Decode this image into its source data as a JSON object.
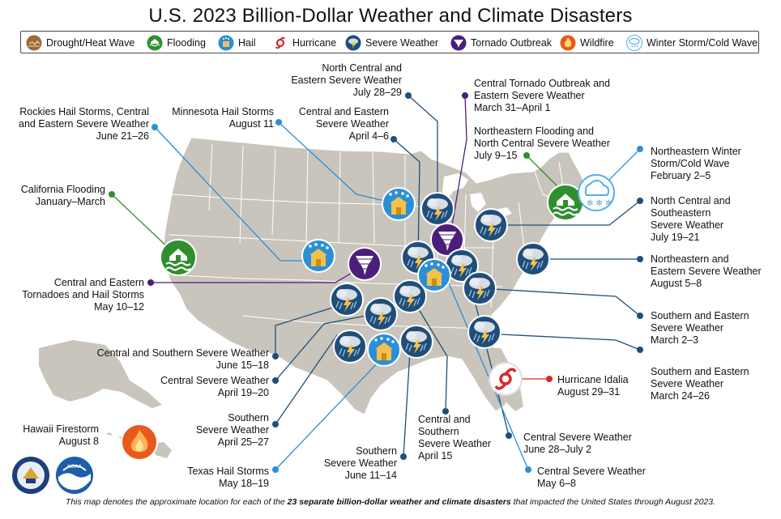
{
  "title": "U.S. 2023 Billion-Dollar Weather and Climate Disasters",
  "legend": [
    {
      "label": "Drought/Heat Wave",
      "icon": "drought-icon",
      "color": "#8a5a2b"
    },
    {
      "label": "Flooding",
      "icon": "flooding-icon",
      "color": "#2f8f2f"
    },
    {
      "label": "Hail",
      "icon": "hail-icon",
      "color": "#2a8fd6"
    },
    {
      "label": "Hurricane",
      "icon": "hurricane-icon",
      "color": "#d62a2a"
    },
    {
      "label": "Severe Weather",
      "icon": "severe-weather-icon",
      "color": "#1f4e79"
    },
    {
      "label": "Tornado Outbreak",
      "icon": "tornado-icon",
      "color": "#4b1e7a"
    },
    {
      "label": "Wildfire",
      "icon": "wildfire-icon",
      "color": "#e85a1c"
    },
    {
      "label": "Winter Storm/Cold Wave",
      "icon": "winter-storm-icon",
      "color": "#5aaee6"
    }
  ],
  "events": [
    {
      "id": "e1",
      "lines": [
        "North Central and",
        "Eastern Severe Weather",
        "July 28–29"
      ],
      "type": "severe-weather"
    },
    {
      "id": "e2",
      "lines": [
        "Central Tornado Outbreak and",
        "Eastern Severe Weather",
        "March 31–April 1"
      ],
      "type": "tornado"
    },
    {
      "id": "e3",
      "lines": [
        "Rockies Hail Storms, Central",
        "and Eastern Severe Weather",
        "June 21–26"
      ],
      "type": "hail"
    },
    {
      "id": "e4",
      "lines": [
        "Minnesota Hail Storms",
        "August 11"
      ],
      "type": "hail"
    },
    {
      "id": "e5",
      "lines": [
        "Central and Eastern",
        "Severe Weather",
        "April 4–6"
      ],
      "type": "severe-weather"
    },
    {
      "id": "e6",
      "lines": [
        "Northeastern Flooding and",
        "North Central Severe Weather",
        "July 9–15"
      ],
      "type": "flooding"
    },
    {
      "id": "e7",
      "lines": [
        "Northeastern Winter",
        "Storm/Cold Wave",
        "February 2–5"
      ],
      "type": "winter-storm"
    },
    {
      "id": "e8",
      "lines": [
        "California Flooding",
        "January–March"
      ],
      "type": "flooding"
    },
    {
      "id": "e9",
      "lines": [
        "North Central and",
        "Southeastern",
        "Severe Weather",
        "July 19–21"
      ],
      "type": "severe-weather"
    },
    {
      "id": "e10",
      "lines": [
        "Northeastern and",
        "Eastern Severe Weather",
        "August 5–8"
      ],
      "type": "severe-weather"
    },
    {
      "id": "e11",
      "lines": [
        "Central and Eastern",
        "Tornadoes and Hail Storms",
        "May 10–12"
      ],
      "type": "tornado"
    },
    {
      "id": "e12",
      "lines": [
        "Southern and Eastern",
        "Severe Weather",
        "March 2–3"
      ],
      "type": "severe-weather"
    },
    {
      "id": "e13",
      "lines": [
        "Central and Southern Severe Weather",
        "June 15–18"
      ],
      "type": "severe-weather"
    },
    {
      "id": "e14",
      "lines": [
        "Southern and Eastern",
        "Severe Weather",
        "March 24–26"
      ],
      "type": "severe-weather"
    },
    {
      "id": "e15",
      "lines": [
        "Central Severe Weather",
        "April 19–20"
      ],
      "type": "severe-weather"
    },
    {
      "id": "e16",
      "lines": [
        "Hurricane Idalia",
        "August 29–31"
      ],
      "type": "hurricane"
    },
    {
      "id": "e17",
      "lines": [
        "Southern",
        "Severe Weather",
        "April 25–27"
      ],
      "type": "severe-weather"
    },
    {
      "id": "e18",
      "lines": [
        "Central and",
        "Southern",
        "Severe Weather",
        "April 15"
      ],
      "type": "severe-weather"
    },
    {
      "id": "e19",
      "lines": [
        "Hawaii Firestorm",
        "August 8"
      ],
      "type": "wildfire"
    },
    {
      "id": "e20",
      "lines": [
        "Central Severe Weather",
        "June 28–July 2"
      ],
      "type": "severe-weather"
    },
    {
      "id": "e21",
      "lines": [
        "Texas Hail Storms",
        "May 18–19"
      ],
      "type": "hail"
    },
    {
      "id": "e22",
      "lines": [
        "Southern",
        "Severe Weather",
        "June 11–14"
      ],
      "type": "severe-weather"
    },
    {
      "id": "e23",
      "lines": [
        "Central Severe Weather",
        "May 6–8"
      ],
      "type": "hail"
    }
  ],
  "footer": {
    "prefix": "This map denotes the approximate location for each of the ",
    "emphasis": "23 separate billion-dollar weather and climate disasters",
    "suffix": " that impacted the United States through August 2023."
  },
  "colors": {
    "land": "#c9c5bc",
    "state_border": "#ffffff",
    "severe": "#1f4e79",
    "hail": "#2a8fd6",
    "flooding": "#2f8f2f",
    "tornado": "#4b1e7a",
    "hurricane": "#d62a2a",
    "wildfire": "#e85a1c",
    "winter": "#5aaee6"
  }
}
